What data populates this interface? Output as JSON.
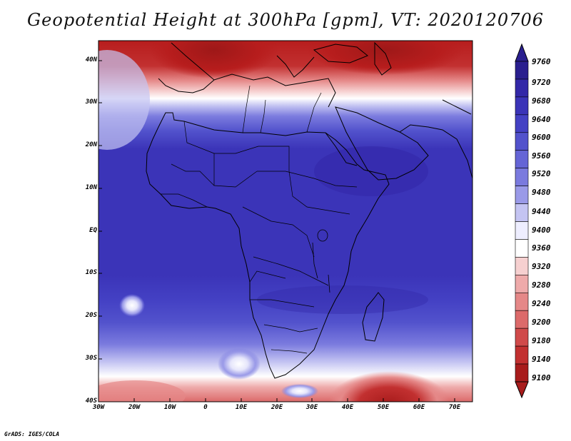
{
  "title": "Geopotential Height at 300hPa [gpm], VT: 2020120706",
  "credit": "GrADS: IGES/COLA",
  "y_ticks": [
    "40N",
    "30N",
    "20N",
    "10N",
    "EQ",
    "10S",
    "20S",
    "30S",
    "40S"
  ],
  "x_ticks": [
    "30W",
    "20W",
    "10W",
    "0",
    "10E",
    "20E",
    "30E",
    "40E",
    "50E",
    "60E",
    "70E"
  ],
  "colorbar": {
    "levels": [
      "9760",
      "9720",
      "9680",
      "9640",
      "9600",
      "9560",
      "9520",
      "9480",
      "9440",
      "9400",
      "9360",
      "9320",
      "9280",
      "9240",
      "9200",
      "9180",
      "9140",
      "9100"
    ],
    "colors": [
      "#2a1f8f",
      "#3328a8",
      "#3b34b8",
      "#4441c4",
      "#5252cc",
      "#6565d6",
      "#7a7ade",
      "#9a9ae8",
      "#c4c4f2",
      "#eeeeff",
      "#ffffff",
      "#f6d0d0",
      "#eeaaaa",
      "#e58888",
      "#dc6a6a",
      "#d04a4a",
      "#c23030",
      "#a81c1c"
    ]
  },
  "map": {
    "extent_lon": [
      -30,
      75
    ],
    "extent_lat": [
      -40,
      45
    ]
  }
}
